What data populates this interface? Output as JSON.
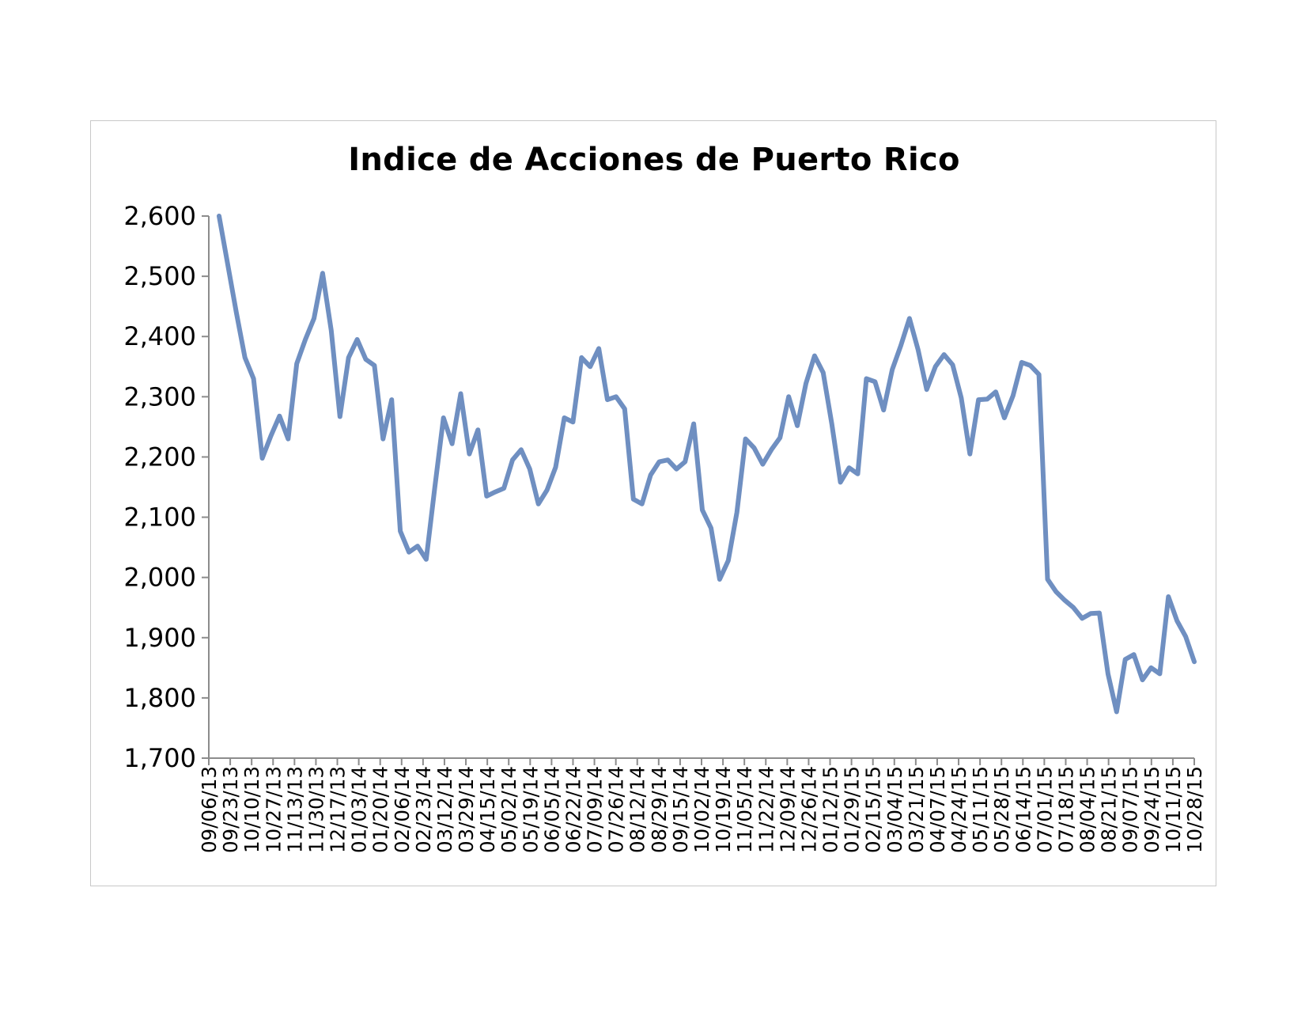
{
  "chart_data": {
    "type": "line",
    "title": "Indice de Acciones de Puerto Rico",
    "xlabel": "",
    "ylabel": "",
    "ylim": [
      1700,
      2600
    ],
    "yticks": [
      "1,700",
      "1,800",
      "1,900",
      "2,000",
      "2,100",
      "2,200",
      "2,300",
      "2,400",
      "2,500",
      "2,600"
    ],
    "xtick_labels": [
      "09/06/13",
      "09/23/13",
      "10/10/13",
      "10/27/13",
      "11/13/13",
      "11/30/13",
      "12/17/13",
      "01/03/14",
      "01/20/14",
      "02/06/14",
      "02/23/14",
      "03/12/14",
      "03/29/14",
      "04/15/14",
      "05/02/14",
      "05/19/14",
      "06/05/14",
      "06/22/14",
      "07/09/14",
      "07/26/14",
      "08/12/14",
      "08/29/14",
      "09/15/14",
      "10/02/14",
      "10/19/14",
      "11/05/14",
      "11/22/14",
      "12/09/14",
      "12/26/14",
      "01/12/15",
      "01/29/15",
      "02/15/15",
      "03/04/15",
      "03/21/15",
      "04/07/15",
      "04/24/15",
      "05/11/15",
      "05/28/15",
      "06/14/15",
      "07/01/15",
      "07/18/15",
      "08/04/15",
      "08/21/15",
      "09/07/15",
      "09/24/15",
      "10/11/15",
      "10/28/15"
    ],
    "grid": false,
    "legend": "none",
    "line_color": "#6f8fc1",
    "series": [
      {
        "values": [
          2600,
          2520,
          2440,
          2365,
          2330,
          2198,
          2235,
          2268,
          2230,
          2355,
          2395,
          2430,
          2505,
          2410,
          2267,
          2365,
          2395,
          2362,
          2352,
          2230,
          2295,
          2077,
          2042,
          2052,
          2030,
          2150,
          2265,
          2222,
          2305,
          2205,
          2245,
          2135,
          2142,
          2148,
          2195,
          2212,
          2180,
          2122,
          2145,
          2183,
          2265,
          2258,
          2365,
          2350,
          2380,
          2295,
          2300,
          2280,
          2130,
          2122,
          2170,
          2192,
          2195,
          2180,
          2192,
          2255,
          2112,
          2082,
          1997,
          2028,
          2108,
          2230,
          2215,
          2188,
          2212,
          2232,
          2300,
          2252,
          2322,
          2368,
          2340,
          2255,
          2158,
          2182,
          2172,
          2330,
          2325,
          2278,
          2345,
          2385,
          2430,
          2378,
          2312,
          2350,
          2370,
          2353,
          2298,
          2205,
          2295,
          2296,
          2308,
          2265,
          2302,
          2357,
          2352,
          2337,
          1997,
          1976,
          1962,
          1950,
          1932,
          1940,
          1941,
          1840,
          1777,
          1864,
          1872,
          1830,
          1850,
          1840,
          1968,
          1928,
          1902,
          1860
        ]
      }
    ]
  }
}
